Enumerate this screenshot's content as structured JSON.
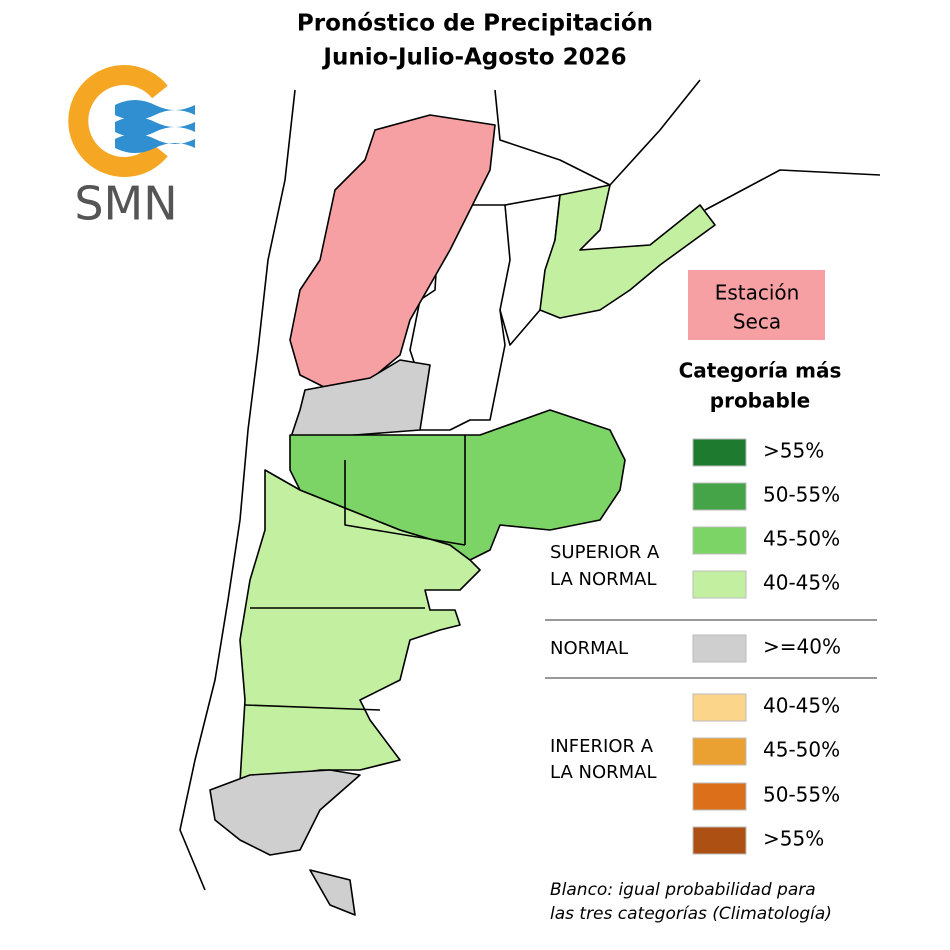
{
  "title": {
    "line1": "Pronóstico de Precipitación",
    "line2": "Junio-Julio-Agosto 2026"
  },
  "logo": {
    "text": "SMN"
  },
  "annotation": {
    "line1": "Estación",
    "line2": "Seca"
  },
  "legend": {
    "title": {
      "line1": "Categoría más",
      "line2": "probable"
    },
    "groups": [
      {
        "label": [
          "SUPERIOR A",
          "LA NORMAL"
        ],
        "items": [
          {
            "label": ">55%",
            "color": "#1e7a2e"
          },
          {
            "label": "50-55%",
            "color": "#45a447"
          },
          {
            "label": "45-50%",
            "color": "#7dd466"
          },
          {
            "label": "40-45%",
            "color": "#c3f0a0"
          }
        ]
      },
      {
        "label": [
          "NORMAL"
        ],
        "items": [
          {
            "label": ">=40%",
            "color": "#cfcfcf"
          }
        ]
      },
      {
        "label": [
          "INFERIOR A",
          "LA NORMAL"
        ],
        "items": [
          {
            "label": "40-45%",
            "color": "#fbd58a"
          },
          {
            "label": "45-50%",
            "color": "#eba032"
          },
          {
            "label": "50-55%",
            "color": "#dc6f1a"
          },
          {
            "label": ">55%",
            "color": "#ad5014"
          }
        ]
      }
    ],
    "note": [
      "Blanco: igual probabilidad para",
      "las tres categorías (Climatología)"
    ]
  }
}
